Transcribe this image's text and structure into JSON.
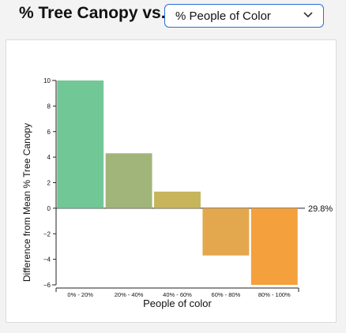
{
  "header": {
    "title": "% Tree Canopy vs.",
    "selector": {
      "value": "% People of Color",
      "icon": "chevron-down-icon"
    }
  },
  "chart_data": {
    "type": "bar",
    "xlabel": "People of color",
    "ylabel": "Difference from Mean % Tree Canopy",
    "categories": [
      "0% - 20%",
      "20% - 40%",
      "40% - 60%",
      "60% - 80%",
      "80% - 100%"
    ],
    "values": [
      10.0,
      4.3,
      1.3,
      -3.7,
      -6.0
    ],
    "colors": [
      "#72c796",
      "#a1b57a",
      "#c6b55b",
      "#e3a74d",
      "#f3a03d"
    ],
    "ylim": [
      -6,
      10
    ],
    "yticks": [
      -6,
      -4,
      -2,
      0,
      2,
      4,
      6,
      8,
      10
    ],
    "mean_label": "29.8%",
    "grid": false,
    "legend": "none"
  }
}
